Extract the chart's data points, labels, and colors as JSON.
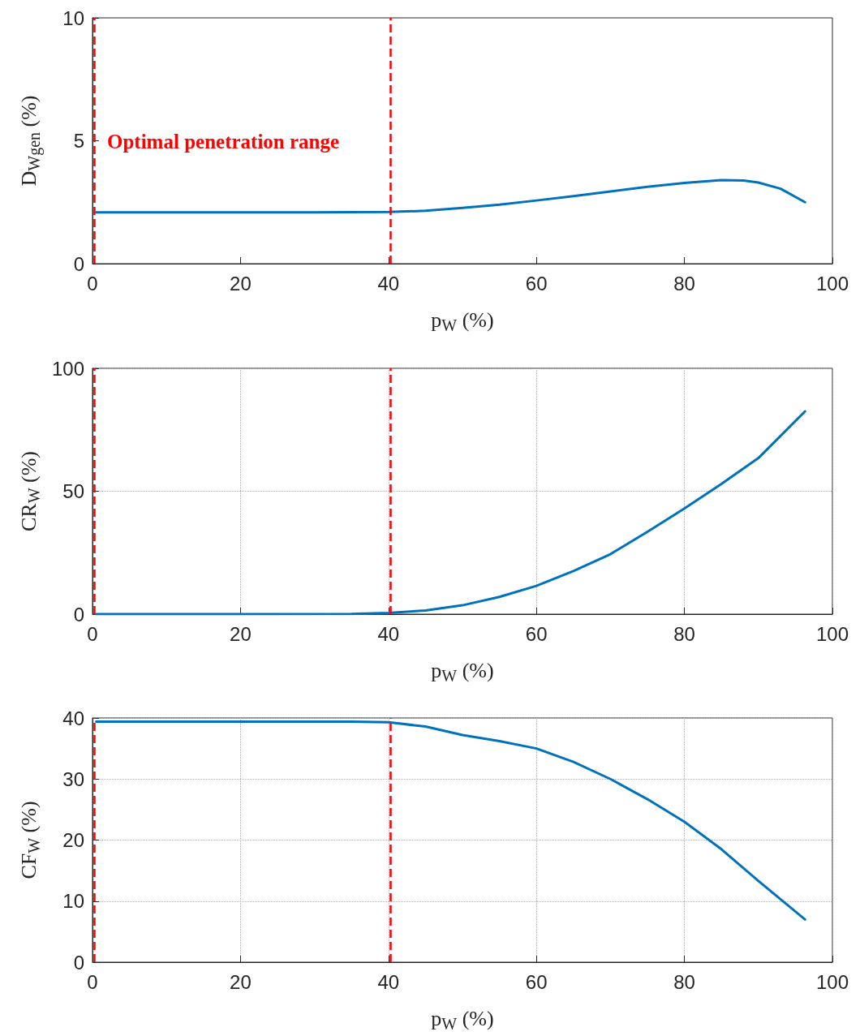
{
  "chart_data": [
    {
      "type": "line",
      "xlabel": "p$_{W}$ (%)",
      "ylabel": "D$_{Wgen}$ (%)",
      "annotations": [
        "Optimal penetration range"
      ],
      "series": [
        {
          "color": "#0072bd",
          "x": [
            0.5,
            10,
            20,
            30,
            40,
            45,
            50,
            55,
            60,
            65,
            70,
            75,
            80,
            85,
            88,
            90,
            93,
            96.3
          ],
          "values": [
            2.09,
            2.09,
            2.09,
            2.09,
            2.1,
            2.15,
            2.27,
            2.4,
            2.57,
            2.75,
            2.94,
            3.13,
            3.28,
            3.4,
            3.38,
            3.3,
            3.05,
            2.5
          ]
        }
      ],
      "xlim": [
        0,
        100
      ],
      "xticks": [
        0,
        20,
        40,
        60,
        80,
        100
      ],
      "ylim": [
        0,
        10
      ],
      "yticks": [
        0,
        5,
        10
      ],
      "grid": false,
      "marker": "none",
      "line_style": "solid",
      "ref_lines": [
        {
          "axis": "x",
          "value": 0.3,
          "color": "#ff0000",
          "line_style": "dashed"
        },
        {
          "axis": "x",
          "value": 40.3,
          "color": "#ff0000",
          "line_style": "dashed"
        }
      ]
    },
    {
      "type": "line",
      "xlabel": "p$_{W}$ (%)",
      "ylabel": "CR$_{W}$ (%)",
      "series": [
        {
          "color": "#0072bd",
          "x": [
            0.5,
            20,
            35,
            40,
            45,
            50,
            55,
            60,
            65,
            70,
            75,
            80,
            85,
            90,
            96.3
          ],
          "values": [
            0,
            0,
            0.1,
            0.5,
            1.5,
            3.6,
            7,
            11.5,
            17.5,
            24.4,
            33.5,
            43,
            53,
            63.5,
            82.5
          ]
        }
      ],
      "xlim": [
        0,
        100
      ],
      "xticks": [
        0,
        20,
        40,
        60,
        80,
        100
      ],
      "ylim": [
        0,
        100
      ],
      "yticks": [
        0,
        50,
        100
      ],
      "grid": true,
      "marker": "none",
      "line_style": "solid",
      "ref_lines": [
        {
          "axis": "x",
          "value": 0.3,
          "color": "#ff0000",
          "line_style": "dashed"
        },
        {
          "axis": "x",
          "value": 40.3,
          "color": "#ff0000",
          "line_style": "dashed"
        }
      ]
    },
    {
      "type": "line",
      "xlabel": "p$_{W}$ (%)",
      "ylabel": "CF$_{W}$ (%)",
      "series": [
        {
          "color": "#0072bd",
          "x": [
            0.5,
            10,
            20,
            30,
            35,
            40,
            45,
            50,
            55,
            60,
            65,
            70,
            75,
            80,
            85,
            90,
            96.3
          ],
          "values": [
            39.4,
            39.4,
            39.4,
            39.4,
            39.4,
            39.3,
            38.6,
            37.2,
            36.2,
            35,
            32.8,
            30,
            26.7,
            23,
            18.5,
            13.3,
            7
          ]
        }
      ],
      "xlim": [
        0,
        100
      ],
      "xticks": [
        0,
        20,
        40,
        60,
        80,
        100
      ],
      "ylim": [
        0,
        40
      ],
      "yticks": [
        0,
        10,
        20,
        30,
        40
      ],
      "grid": true,
      "marker": "none",
      "line_style": "solid",
      "ref_lines": [
        {
          "axis": "x",
          "value": 0.3,
          "color": "#ff0000",
          "line_style": "dashed"
        },
        {
          "axis": "x",
          "value": 40.3,
          "color": "#ff0000",
          "line_style": "dashed"
        }
      ]
    }
  ]
}
